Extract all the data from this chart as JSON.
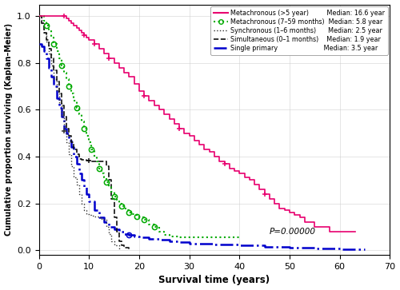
{
  "xlabel": "Survival time (years)",
  "ylabel": "Cumulative proportion surviving (Kaplan–Meier)",
  "xlim": [
    0,
    70
  ],
  "ylim": [
    -0.02,
    1.05
  ],
  "xticks": [
    0,
    10,
    20,
    30,
    40,
    50,
    60,
    70
  ],
  "yticks": [
    0.0,
    0.2,
    0.4,
    0.6,
    0.8,
    1.0
  ],
  "pvalue": "P=0.00000",
  "curves": {
    "metachronous_gt5": {
      "color": "#e8006e",
      "lw": 1.2,
      "linestyle": "-",
      "x": [
        0,
        5,
        5.5,
        6,
        6.5,
        7,
        7.5,
        8,
        8.5,
        9,
        9.5,
        10,
        11,
        12,
        13,
        14,
        15,
        16,
        17,
        18,
        19,
        20,
        21,
        22,
        23,
        24,
        25,
        26,
        27,
        28,
        29,
        30,
        31,
        32,
        33,
        34,
        35,
        36,
        37,
        38,
        39,
        40,
        41,
        42,
        43,
        44,
        45,
        46,
        47,
        48,
        49,
        50,
        51,
        52,
        53,
        55,
        58,
        60,
        63
      ],
      "y": [
        1.0,
        1.0,
        0.99,
        0.98,
        0.97,
        0.96,
        0.95,
        0.94,
        0.93,
        0.92,
        0.91,
        0.9,
        0.88,
        0.86,
        0.84,
        0.82,
        0.8,
        0.78,
        0.76,
        0.74,
        0.71,
        0.68,
        0.66,
        0.64,
        0.62,
        0.6,
        0.58,
        0.56,
        0.54,
        0.52,
        0.5,
        0.49,
        0.47,
        0.45,
        0.43,
        0.42,
        0.4,
        0.38,
        0.37,
        0.35,
        0.34,
        0.33,
        0.31,
        0.3,
        0.28,
        0.26,
        0.24,
        0.22,
        0.2,
        0.18,
        0.17,
        0.16,
        0.15,
        0.14,
        0.12,
        0.1,
        0.08,
        0.08,
        0.08
      ],
      "censors_x": [
        5,
        9,
        11,
        14,
        21,
        28,
        37,
        45
      ],
      "censors_y": [
        1.0,
        0.92,
        0.88,
        0.82,
        0.66,
        0.52,
        0.37,
        0.24
      ],
      "censor_marker": "+"
    },
    "metachronous_7_59": {
      "color": "#00aa00",
      "lw": 1.5,
      "linestyle": ":",
      "x": [
        0,
        1,
        1.5,
        2,
        2.5,
        3,
        3.5,
        4,
        4.5,
        5,
        5.5,
        6,
        6.5,
        7,
        7.5,
        8,
        8.5,
        9,
        9.5,
        10,
        10.5,
        11,
        11.5,
        12,
        12.5,
        13,
        13.5,
        14,
        14.5,
        15,
        15.5,
        16,
        16.5,
        17,
        17.5,
        18,
        18.5,
        19,
        19.5,
        20,
        21,
        22,
        23,
        24,
        25,
        26,
        27,
        28,
        30,
        35,
        40
      ],
      "y": [
        1.0,
        0.98,
        0.96,
        0.94,
        0.91,
        0.88,
        0.85,
        0.82,
        0.79,
        0.76,
        0.73,
        0.7,
        0.67,
        0.64,
        0.61,
        0.58,
        0.55,
        0.52,
        0.49,
        0.46,
        0.43,
        0.4,
        0.38,
        0.35,
        0.33,
        0.31,
        0.29,
        0.27,
        0.25,
        0.23,
        0.21,
        0.2,
        0.19,
        0.18,
        0.17,
        0.16,
        0.155,
        0.15,
        0.145,
        0.14,
        0.13,
        0.11,
        0.1,
        0.08,
        0.065,
        0.06,
        0.058,
        0.056,
        0.055,
        0.055,
        0.055
      ],
      "censors_x": [
        1.5,
        3,
        4.5,
        6,
        7.5,
        9,
        10.5,
        12,
        13.5,
        15,
        16.5,
        18,
        19.5,
        21,
        23
      ],
      "censors_y": [
        0.96,
        0.88,
        0.79,
        0.7,
        0.61,
        0.52,
        0.43,
        0.35,
        0.29,
        0.23,
        0.19,
        0.16,
        0.145,
        0.13,
        0.1
      ],
      "censor_marker": "o"
    },
    "synchronous": {
      "color": "#333333",
      "lw": 1.0,
      "linestyle": ":",
      "x": [
        0,
        0.5,
        1,
        1.5,
        2,
        2.5,
        3,
        3.5,
        4,
        4.5,
        5,
        5.5,
        6,
        6.5,
        7,
        7.5,
        8,
        8.5,
        9,
        9.5,
        10,
        10.5,
        11,
        11.5,
        12,
        12.5,
        13,
        13.5,
        14,
        14.5,
        15,
        16
      ],
      "y": [
        1.0,
        0.97,
        0.93,
        0.89,
        0.84,
        0.79,
        0.73,
        0.68,
        0.63,
        0.57,
        0.51,
        0.46,
        0.41,
        0.36,
        0.31,
        0.28,
        0.24,
        0.2,
        0.17,
        0.155,
        0.15,
        0.148,
        0.145,
        0.143,
        0.14,
        0.135,
        0.13,
        0.1,
        0.07,
        0.04,
        0.02,
        0.0
      ],
      "censors_x": [
        5
      ],
      "censors_y": [
        0.51
      ],
      "censor_marker": "+"
    },
    "simultaneous": {
      "color": "#111111",
      "lw": 1.2,
      "linestyle": "--",
      "x": [
        0,
        0.5,
        1,
        1.5,
        2,
        2.5,
        3,
        3.5,
        4,
        4.5,
        5,
        5.5,
        6,
        6.5,
        7,
        7.5,
        8,
        8.5,
        9,
        9.5,
        10,
        10.1,
        10.5,
        11,
        12,
        12.5,
        13,
        13.5,
        14,
        14.5,
        15,
        15.5,
        16,
        16.5,
        17,
        18
      ],
      "y": [
        1.0,
        0.97,
        0.93,
        0.9,
        0.86,
        0.82,
        0.77,
        0.72,
        0.67,
        0.62,
        0.57,
        0.52,
        0.49,
        0.46,
        0.43,
        0.41,
        0.39,
        0.388,
        0.386,
        0.384,
        0.382,
        0.38,
        0.38,
        0.38,
        0.38,
        0.38,
        0.38,
        0.36,
        0.3,
        0.22,
        0.14,
        0.08,
        0.04,
        0.02,
        0.01,
        0.0
      ],
      "censors_x": [
        10.0
      ],
      "censors_y": [
        0.382
      ],
      "censor_marker": "+"
    },
    "single": {
      "color": "#0000cc",
      "lw": 1.8,
      "linestyle": "-.",
      "x": [
        0,
        0.5,
        1,
        1.5,
        2,
        2.5,
        3,
        3.5,
        4,
        4.5,
        5,
        5.5,
        6,
        6.5,
        7,
        7.5,
        8,
        8.5,
        9,
        9.5,
        10,
        11,
        12,
        13,
        14,
        15,
        16,
        17,
        18,
        19,
        20,
        22,
        24,
        26,
        28,
        30,
        35,
        40,
        45,
        50,
        55,
        60,
        65
      ],
      "y": [
        0.88,
        0.87,
        0.85,
        0.82,
        0.78,
        0.74,
        0.7,
        0.65,
        0.61,
        0.57,
        0.52,
        0.5,
        0.47,
        0.44,
        0.4,
        0.37,
        0.33,
        0.3,
        0.27,
        0.24,
        0.21,
        0.17,
        0.14,
        0.12,
        0.1,
        0.09,
        0.08,
        0.07,
        0.065,
        0.06,
        0.055,
        0.05,
        0.045,
        0.04,
        0.035,
        0.03,
        0.025,
        0.02,
        0.015,
        0.01,
        0.008,
        0.005,
        0.003
      ],
      "censors_x": [
        18
      ],
      "censors_y": [
        0.065
      ],
      "censor_marker": "o"
    }
  }
}
